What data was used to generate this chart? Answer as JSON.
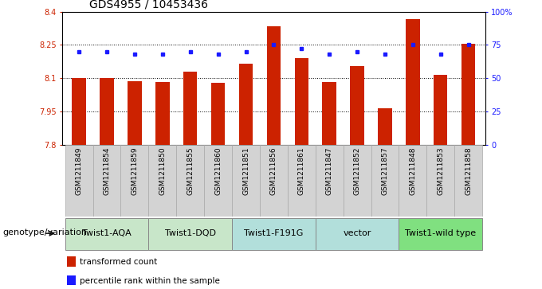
{
  "title": "GDS4955 / 10453436",
  "samples": [
    "GSM1211849",
    "GSM1211854",
    "GSM1211859",
    "GSM1211850",
    "GSM1211855",
    "GSM1211860",
    "GSM1211851",
    "GSM1211856",
    "GSM1211861",
    "GSM1211847",
    "GSM1211852",
    "GSM1211857",
    "GSM1211848",
    "GSM1211853",
    "GSM1211858"
  ],
  "red_values": [
    8.1,
    8.1,
    8.085,
    8.082,
    8.13,
    8.08,
    8.165,
    8.335,
    8.19,
    8.082,
    8.155,
    7.962,
    8.365,
    8.115,
    8.255
  ],
  "blue_values": [
    70,
    70,
    68,
    68,
    70,
    68,
    70,
    75,
    72,
    68,
    70,
    68,
    75,
    68,
    75
  ],
  "groups": [
    {
      "label": "Twist1-AQA",
      "start": 0,
      "end": 2
    },
    {
      "label": "Twist1-DQD",
      "start": 3,
      "end": 5
    },
    {
      "label": "Twist1-F191G",
      "start": 6,
      "end": 8
    },
    {
      "label": "vector",
      "start": 9,
      "end": 11
    },
    {
      "label": "Twist1-wild type",
      "start": 12,
      "end": 14
    }
  ],
  "group_colors": [
    "#c8e6c9",
    "#c8e6c9",
    "#b2dfdb",
    "#b2dfdb",
    "#80e080"
  ],
  "ylim_left": [
    7.8,
    8.4
  ],
  "ylim_right": [
    0,
    100
  ],
  "yticks_left": [
    7.8,
    7.95,
    8.1,
    8.25,
    8.4
  ],
  "ytick_labels_left": [
    "7.8",
    "7.95",
    "8.1",
    "8.25",
    "8.4"
  ],
  "yticks_right": [
    0,
    25,
    50,
    75,
    100
  ],
  "ytick_labels_right": [
    "0",
    "25",
    "50",
    "75",
    "100%"
  ],
  "dotted_lines": [
    7.95,
    8.1,
    8.25
  ],
  "bar_color": "#cc2200",
  "dot_color": "#1a1aff",
  "group_label": "genotype/variation",
  "legend_items": [
    {
      "color": "#cc2200",
      "label": "transformed count"
    },
    {
      "color": "#1a1aff",
      "label": "percentile rank within the sample"
    }
  ],
  "bar_width": 0.5,
  "sample_box_color": "#d3d3d3",
  "sample_box_edge": "#aaaaaa",
  "title_fontsize": 10,
  "tick_fontsize": 7,
  "sample_fontsize": 6.5,
  "group_fontsize": 8,
  "legend_fontsize": 7.5,
  "group_label_fontsize": 8
}
